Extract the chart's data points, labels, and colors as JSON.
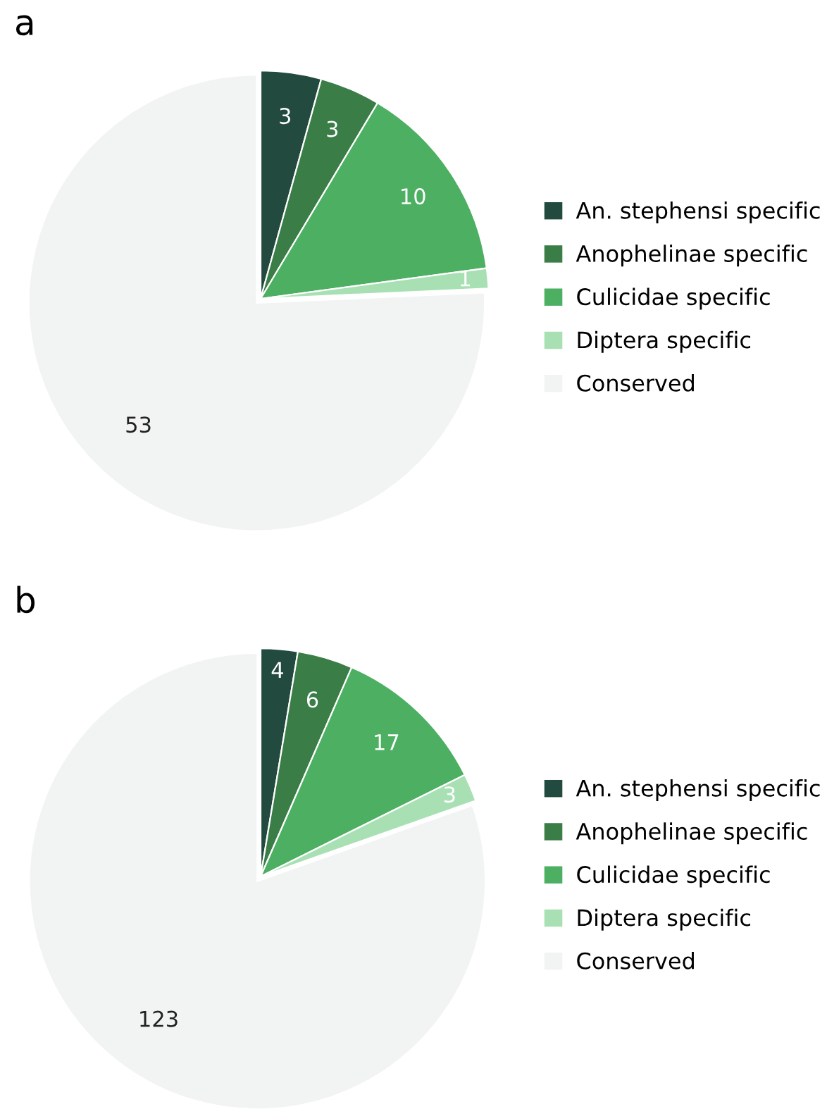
{
  "chart_data": [
    {
      "type": "pie",
      "title": "a",
      "categories": [
        "An. stephensi specific",
        "Anophelinae specific",
        "Culicidae specific",
        "Diptera specific",
        "Conserved"
      ],
      "values": [
        3,
        3,
        10,
        1,
        53
      ],
      "colors": [
        "#234a3f",
        "#3a7d47",
        "#4caf62",
        "#a8e0b4",
        "#f2f3f3"
      ],
      "data_labels": true,
      "legend": "right"
    },
    {
      "type": "pie",
      "title": "b",
      "categories": [
        "An. stephensi specific",
        "Anophelinae specific",
        "Culicidae specific",
        "Diptera specific",
        "Conserved"
      ],
      "values": [
        4,
        6,
        17,
        3,
        123
      ],
      "colors": [
        "#234a3f",
        "#3a7d47",
        "#4caf62",
        "#a8e0b4",
        "#f2f3f3"
      ],
      "data_labels": true,
      "legend": "right"
    }
  ]
}
